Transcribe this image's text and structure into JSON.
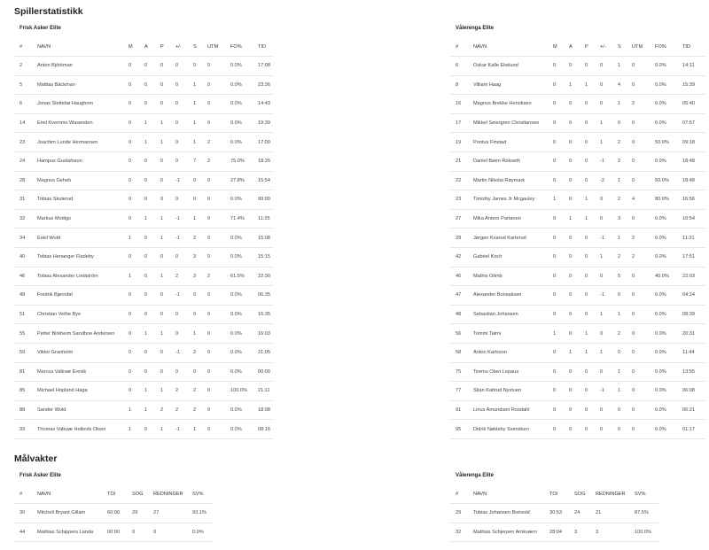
{
  "players_title": "Spillerstatistikk",
  "goalies_title": "Målvakter",
  "player_columns": [
    "#",
    "NAVN",
    "M",
    "A",
    "P",
    "+/-",
    "S",
    "UTM",
    "FO%",
    "TID"
  ],
  "goalie_columns": [
    "#",
    "NAVN",
    "TOI",
    "SOG",
    "REDNINGER",
    "SV%"
  ],
  "home": {
    "team": "Frisk Asker Elite",
    "players": [
      [
        "2",
        "Anton Björkman",
        "0",
        "0",
        "0",
        "0",
        "0",
        "0",
        "0.0%",
        "17:08"
      ],
      [
        "5",
        "Mattias Bäckman",
        "0",
        "0",
        "0",
        "0",
        "1",
        "0",
        "0.0%",
        "23:36"
      ],
      [
        "6",
        "Jonas Slettebø Haughom",
        "0",
        "0",
        "0",
        "0",
        "1",
        "0",
        "0.0%",
        "14:43"
      ],
      [
        "14",
        "Emil Kvemmo Wasenden",
        "0",
        "1",
        "1",
        "0",
        "1",
        "0",
        "0.0%",
        "19:39"
      ],
      [
        "23",
        "Joachim Lunde Hermansen",
        "0",
        "1",
        "1",
        "0",
        "1",
        "2",
        "0.0%",
        "17:00"
      ],
      [
        "24",
        "Hampus Gustafsson",
        "0",
        "0",
        "0",
        "0",
        "7",
        "2",
        "75.0%",
        "18:26"
      ],
      [
        "28",
        "Magnus Geheb",
        "0",
        "0",
        "0",
        "-1",
        "0",
        "0",
        "27.8%",
        "15:54"
      ],
      [
        "31",
        "Tobias Skuterud",
        "0",
        "0",
        "0",
        "0",
        "0",
        "0",
        "0.0%",
        "00:00"
      ],
      [
        "32",
        "Markus Modigs",
        "0",
        "1",
        "1",
        "-1",
        "1",
        "0",
        "71.4%",
        "11:25"
      ],
      [
        "34",
        "Eskil Wold",
        "1",
        "0",
        "1",
        "-1",
        "2",
        "0",
        "0.0%",
        "15:08"
      ],
      [
        "40",
        "Tobias Henanger Fladeby",
        "0",
        "0",
        "0",
        "0",
        "3",
        "0",
        "0.0%",
        "15:15"
      ],
      [
        "46",
        "Tobias Alexander Lindström",
        "1",
        "0",
        "1",
        "2",
        "3",
        "2",
        "61.5%",
        "22:30"
      ],
      [
        "48",
        "Fredrik Bjørndal",
        "0",
        "0",
        "0",
        "-1",
        "0",
        "0",
        "0.0%",
        "06:35"
      ],
      [
        "51",
        "Christian Vethe Bye",
        "0",
        "0",
        "0",
        "0",
        "0",
        "0",
        "0.0%",
        "16:35"
      ],
      [
        "55",
        "Petter Birkheim Sandboe Andersen",
        "0",
        "1",
        "1",
        "0",
        "1",
        "0",
        "0.0%",
        "16:03"
      ],
      [
        "59",
        "Viktor Granholm",
        "0",
        "0",
        "0",
        "-1",
        "2",
        "0",
        "0.0%",
        "21:05"
      ],
      [
        "81",
        "Marcus Valkvæ Erevik",
        "0",
        "0",
        "0",
        "0",
        "0",
        "0",
        "0.0%",
        "00:00"
      ],
      [
        "85",
        "Michael Hopland Haga",
        "0",
        "1",
        "1",
        "2",
        "2",
        "0",
        "100.0%",
        "21:11"
      ],
      [
        "88",
        "Sander Wold",
        "1",
        "1",
        "2",
        "2",
        "2",
        "0",
        "0.0%",
        "18:08"
      ],
      [
        "93",
        "Thomas Valkvæ Hollevik Olsen",
        "1",
        "0",
        "1",
        "-1",
        "1",
        "0",
        "0.0%",
        "08:16"
      ]
    ],
    "goalies": [
      [
        "30",
        "Mitchell Bryant Gillam",
        "60:00",
        "29",
        "27",
        "93.1%"
      ],
      [
        "44",
        "Mathias Schippers Landa",
        "00:00",
        "0",
        "0",
        "0.0%"
      ]
    ]
  },
  "away": {
    "team": "Vålerenga Elite",
    "players": [
      [
        "6",
        "Oskar Kalle Ekelund",
        "0",
        "0",
        "0",
        "0",
        "1",
        "0",
        "0.0%",
        "14:11"
      ],
      [
        "8",
        "Villiam Haag",
        "0",
        "1",
        "1",
        "0",
        "4",
        "0",
        "0.0%",
        "15:39"
      ],
      [
        "16",
        "Magnus Brekke Henriksen",
        "0",
        "0",
        "0",
        "0",
        "1",
        "2",
        "0.0%",
        "05:40"
      ],
      [
        "17",
        "Mikkel Seiergren Christiansen",
        "0",
        "0",
        "0",
        "1",
        "0",
        "0",
        "0.0%",
        "07:57"
      ],
      [
        "19",
        "Pontus Finstad",
        "0",
        "0",
        "0",
        "1",
        "2",
        "0",
        "50.0%",
        "09:18"
      ],
      [
        "21",
        "Daniel Bøen Rokseth",
        "0",
        "0",
        "0",
        "-1",
        "2",
        "0",
        "0.0%",
        "18:48"
      ],
      [
        "22",
        "Martin Nikolai Røymark",
        "0",
        "0",
        "0",
        "-2",
        "1",
        "0",
        "50.0%",
        "18:48"
      ],
      [
        "23",
        "Timothy James Jr Mcgauley",
        "1",
        "0",
        "1",
        "0",
        "2",
        "4",
        "80.0%",
        "16:56"
      ],
      [
        "27",
        "Mika Antero Partanen",
        "0",
        "1",
        "1",
        "0",
        "3",
        "0",
        "0.0%",
        "10:54"
      ],
      [
        "28",
        "Jørgen Kvarud Karterud",
        "0",
        "0",
        "0",
        "-1",
        "1",
        "2",
        "0.0%",
        "11:31"
      ],
      [
        "42",
        "Gabriel Koch",
        "0",
        "0",
        "0",
        "1",
        "2",
        "2",
        "0.0%",
        "17:51"
      ],
      [
        "46",
        "Mathis Olimb",
        "0",
        "0",
        "0",
        "0",
        "5",
        "0",
        "40.0%",
        "22:03"
      ],
      [
        "47",
        "Alexander Bonsaksen",
        "0",
        "0",
        "0",
        "-1",
        "0",
        "0",
        "0.0%",
        "04:24"
      ],
      [
        "48",
        "Sebastian Johansen",
        "0",
        "0",
        "0",
        "1",
        "1",
        "0",
        "0.0%",
        "08:39"
      ],
      [
        "56",
        "Tommi Taimi",
        "1",
        "0",
        "1",
        "0",
        "2",
        "0",
        "0.0%",
        "20:31"
      ],
      [
        "58",
        "Anton Karlsson",
        "0",
        "1",
        "1",
        "1",
        "0",
        "0",
        "0.0%",
        "11:44"
      ],
      [
        "75",
        "Teemu Olavi Lepaus",
        "0",
        "0",
        "0",
        "0",
        "1",
        "0",
        "0.0%",
        "13:55"
      ],
      [
        "77",
        "Stian Kaltrud Nystuen",
        "0",
        "0",
        "0",
        "-1",
        "1",
        "0",
        "0.0%",
        "06:08"
      ],
      [
        "91",
        "Linus Amundsen Rosdahl",
        "0",
        "0",
        "0",
        "0",
        "0",
        "0",
        "0.0%",
        "06:21"
      ],
      [
        "95",
        "Didrik Nøkleby Svendsen",
        "0",
        "0",
        "0",
        "0",
        "0",
        "0",
        "0.0%",
        "01:17"
      ]
    ],
    "goalies": [
      [
        "29",
        "Tobias Johansen Breivold",
        "30:53",
        "24",
        "21",
        "87.5%"
      ],
      [
        "32",
        "Mathias Schjerpen Arnkværn",
        "28:04",
        "3",
        "3",
        "100.0%"
      ]
    ]
  }
}
